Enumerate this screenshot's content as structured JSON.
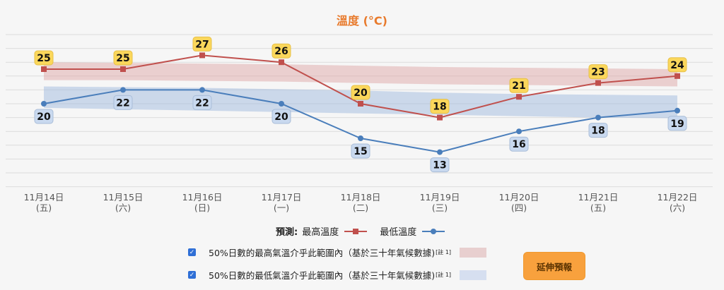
{
  "title": "溫度 (°C)",
  "colors": {
    "title": "#e87a2c",
    "max_line": "#c0504d",
    "min_line": "#4a7ebb",
    "max_label_bg": "#fbd75b",
    "min_label_bg": "#c9d9ef",
    "max_band": "#e8c4c4",
    "min_band": "#c8d6ea",
    "button_bg": "#f8a13d"
  },
  "x_labels": [
    {
      "date": "11月14日",
      "weekday": "(五)"
    },
    {
      "date": "11月15日",
      "weekday": "(六)"
    },
    {
      "date": "11月16日",
      "weekday": "(日)"
    },
    {
      "date": "11月17日",
      "weekday": "(一)"
    },
    {
      "date": "11月18日",
      "weekday": "(二)"
    },
    {
      "date": "11月19日",
      "weekday": "(三)"
    },
    {
      "date": "11月20日",
      "weekday": "(四)"
    },
    {
      "date": "11月21日",
      "weekday": "(五)"
    },
    {
      "date": "11月22日",
      "weekday": "(六)"
    }
  ],
  "legend": {
    "prefix": "預測:",
    "max_label": "最高溫度",
    "min_label": "最低溫度"
  },
  "bands": {
    "max_text": "50%日數的最高氣溫介乎此範圍內（基於三十年氣候數據)",
    "min_text": "50%日數的最低氣溫介乎此範圍內（基於三十年氣候數據)",
    "note": "[註 1]",
    "max_checked": true,
    "min_checked": true
  },
  "button": {
    "extended_forecast": "延伸預報"
  },
  "chart_data": {
    "type": "line",
    "title": "溫度 (°C)",
    "xlabel": "",
    "ylabel": "",
    "categories": [
      "11月14日 (五)",
      "11月15日 (六)",
      "11月16日 (日)",
      "11月17日 (一)",
      "11月18日 (二)",
      "11月19日 (三)",
      "11月20日 (四)",
      "11月21日 (五)",
      "11月22日 (六)"
    ],
    "series": [
      {
        "name": "最高溫度",
        "values": [
          25,
          25,
          27,
          26,
          20,
          18,
          21,
          23,
          24
        ],
        "marker": "square",
        "color": "#c0504d"
      },
      {
        "name": "最低溫度",
        "values": [
          20,
          22,
          22,
          20,
          15,
          13,
          16,
          18,
          19
        ],
        "marker": "circle",
        "color": "#4a7ebb"
      }
    ],
    "bands": [
      {
        "name": "50%日數的最高氣溫介乎此範圍內",
        "upper": [
          26.0,
          25.9,
          25.8,
          25.7,
          25.5,
          25.3,
          25.2,
          25.1,
          25.0
        ],
        "lower": [
          23.4,
          23.4,
          23.3,
          23.2,
          23.0,
          22.8,
          22.7,
          22.6,
          22.5
        ]
      },
      {
        "name": "50%日數的最低氣溫介乎此範圍內",
        "upper": [
          22.5,
          22.4,
          22.3,
          22.1,
          21.9,
          21.6,
          21.4,
          21.3,
          21.2
        ],
        "lower": [
          19.4,
          19.2,
          19.0,
          18.8,
          18.6,
          18.4,
          18.2,
          18.0,
          17.9
        ]
      }
    ],
    "ylim": [
      8,
      30
    ],
    "grid": true,
    "gridline_step": 2,
    "legend_position": "bottom",
    "data_labels": true
  }
}
